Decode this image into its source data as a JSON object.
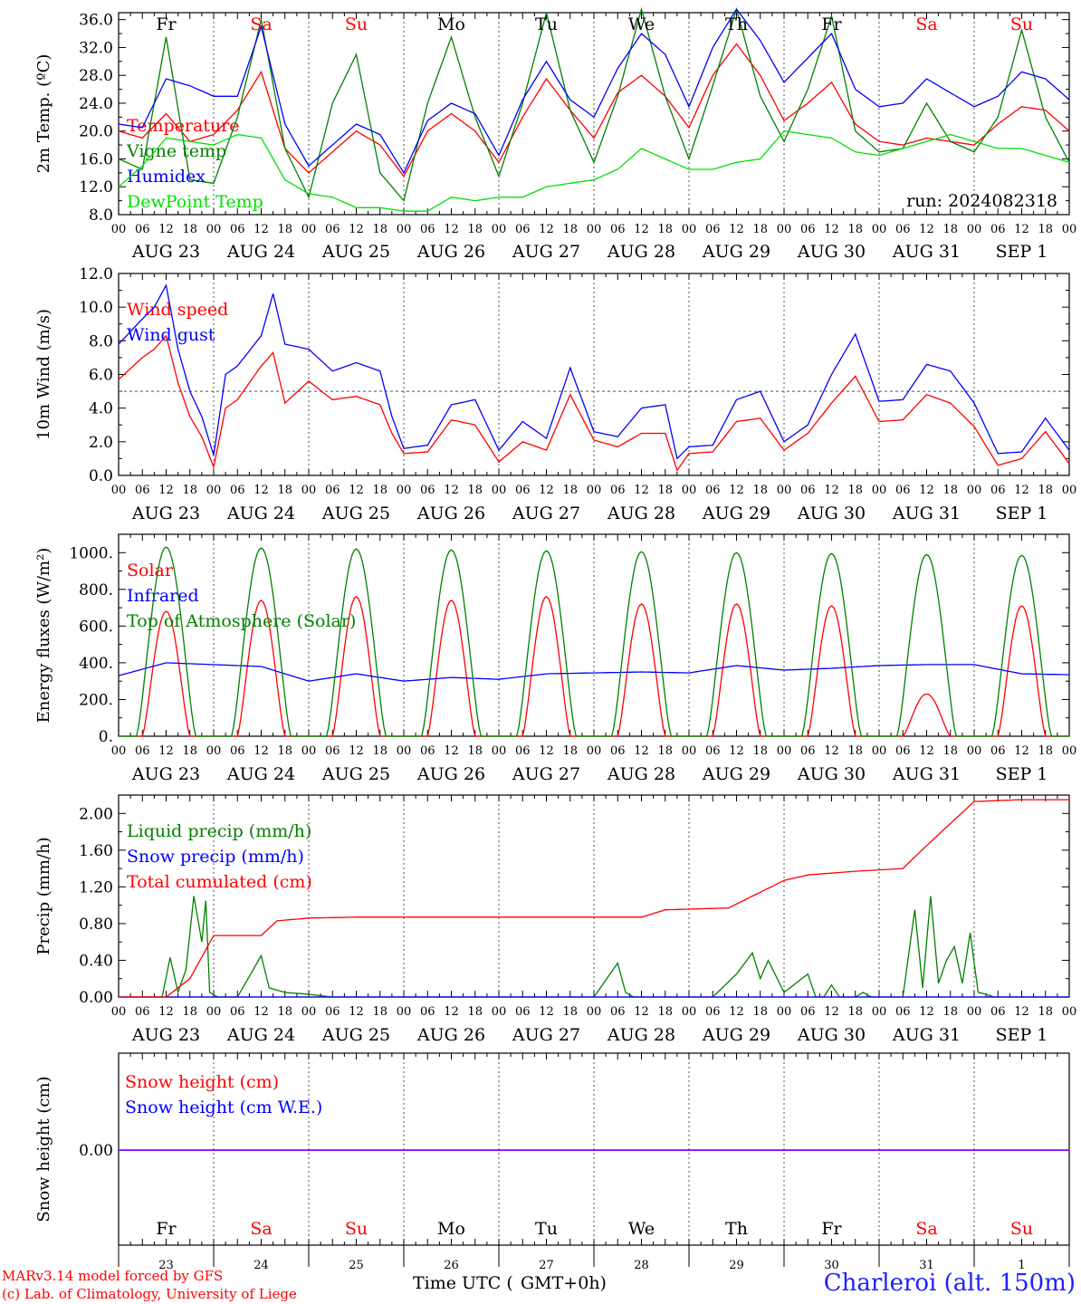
{
  "run_label": "run: 2024082318",
  "footer": {
    "credit_line1": "MARv3.14 model forced by GFS",
    "credit_line2": "(c) Lab. of Climatology, University of Liege",
    "time_axis_label": "Time UTC (",
    "time_axis_label2": "GMT+0h)",
    "station": "Charleroi (alt. 150m)"
  },
  "colors": {
    "red": "#ff0000",
    "blue": "#0000ff",
    "green": "#008000",
    "lightgreen": "#00e000",
    "purple": "#8000ff",
    "weekend": "#ff0000"
  },
  "chart_data": [
    {
      "type": "line",
      "ylabel": "2m Temp. (ºC)",
      "ylim": [
        8,
        37
      ],
      "yticks": [
        8,
        12,
        16,
        20,
        24,
        28,
        32,
        36
      ],
      "tick_decimals": 1,
      "grid": "vertical dotted at day boundaries",
      "weekdays": [
        {
          "label": "Fr",
          "weekend": false
        },
        {
          "label": "Sa",
          "weekend": true
        },
        {
          "label": "Su",
          "weekend": true
        },
        {
          "label": "Mo",
          "weekend": false
        },
        {
          "label": "Tu",
          "weekend": false
        },
        {
          "label": "We",
          "weekend": false
        },
        {
          "label": "Th",
          "weekend": false
        },
        {
          "label": "Fr",
          "weekend": false
        },
        {
          "label": "Sa",
          "weekend": true
        },
        {
          "label": "Su",
          "weekend": true
        }
      ],
      "x_hours": [
        0,
        6,
        12,
        15,
        18,
        24,
        30,
        36,
        40,
        42,
        48,
        54,
        60,
        66,
        72,
        78,
        84,
        90,
        96,
        102,
        108,
        114,
        120,
        126,
        132,
        138,
        144,
        150,
        156,
        162,
        168,
        174,
        180,
        186,
        192,
        198,
        204,
        210,
        216,
        222,
        228,
        234,
        240
      ],
      "series": [
        {
          "name": "Temperature",
          "color": "#ff0000",
          "x": [
            0,
            6,
            12,
            18,
            24,
            30,
            36,
            42,
            48,
            54,
            60,
            66,
            72,
            78,
            84,
            90,
            96,
            102,
            108,
            114,
            120,
            126,
            132,
            138,
            144,
            150,
            156,
            162,
            168,
            174,
            180,
            186,
            192,
            198,
            204,
            210,
            216,
            222,
            228,
            234,
            240
          ],
          "values": [
            20.0,
            19.0,
            22.5,
            18.5,
            19.5,
            23.0,
            28.5,
            17.5,
            14.0,
            17.0,
            20.0,
            18.0,
            13.5,
            20.0,
            22.5,
            20.0,
            15.5,
            22.0,
            27.5,
            23.0,
            19.0,
            25.5,
            28.0,
            25.0,
            20.5,
            28.0,
            32.5,
            28.0,
            21.5,
            24.0,
            27.0,
            21.0,
            18.5,
            18.0,
            19.0,
            18.5,
            18.0,
            21.0,
            23.5,
            23.0,
            20.0
          ]
        },
        {
          "name": "Vigne temp",
          "color": "#008000",
          "x": [
            0,
            6,
            12,
            18,
            24,
            30,
            36,
            42,
            48,
            54,
            60,
            66,
            72,
            78,
            84,
            90,
            96,
            102,
            108,
            114,
            120,
            126,
            132,
            138,
            144,
            150,
            156,
            162,
            168,
            174,
            180,
            186,
            192,
            198,
            204,
            210,
            216,
            222,
            228,
            234,
            240
          ],
          "values": [
            16.0,
            14.5,
            33.5,
            13.0,
            12.5,
            22.0,
            36.0,
            17.5,
            10.5,
            24.0,
            31.0,
            14.0,
            10.0,
            24.0,
            33.5,
            22.0,
            13.5,
            24.0,
            37.0,
            23.0,
            15.5,
            25.0,
            37.5,
            25.0,
            16.0,
            26.5,
            37.5,
            25.0,
            18.5,
            26.0,
            36.5,
            20.0,
            17.0,
            17.5,
            24.0,
            18.5,
            17.0,
            22.0,
            34.5,
            22.0,
            15.5
          ]
        },
        {
          "name": "Humidex",
          "color": "#0000ff",
          "x": [
            0,
            6,
            12,
            18,
            24,
            30,
            36,
            42,
            48,
            54,
            60,
            66,
            72,
            78,
            84,
            90,
            96,
            102,
            108,
            114,
            120,
            126,
            132,
            138,
            144,
            150,
            156,
            162,
            168,
            174,
            180,
            186,
            192,
            198,
            204,
            210,
            216,
            222,
            228,
            234,
            240
          ],
          "values": [
            21.0,
            20.5,
            27.5,
            26.5,
            25.0,
            25.0,
            35.0,
            21.0,
            15.0,
            18.0,
            21.0,
            19.5,
            14.0,
            21.5,
            24.0,
            22.5,
            16.5,
            24.5,
            30.0,
            24.5,
            22.0,
            29.0,
            34.0,
            31.0,
            23.5,
            32.0,
            37.5,
            33.0,
            27.0,
            30.5,
            34.0,
            26.0,
            23.5,
            24.0,
            27.5,
            25.5,
            23.5,
            25.0,
            28.5,
            27.5,
            24.5
          ]
        },
        {
          "name": "DewPoint Temp",
          "color": "#00e000",
          "x": [
            0,
            6,
            12,
            18,
            24,
            30,
            36,
            42,
            48,
            54,
            60,
            66,
            72,
            78,
            84,
            90,
            96,
            102,
            108,
            114,
            120,
            126,
            132,
            138,
            144,
            150,
            156,
            162,
            168,
            174,
            180,
            186,
            192,
            198,
            204,
            210,
            216,
            222,
            228,
            234,
            240
          ],
          "values": [
            12.0,
            15.0,
            19.0,
            18.5,
            18.0,
            19.5,
            19.0,
            13.0,
            11.0,
            10.5,
            9.0,
            9.0,
            8.5,
            8.5,
            10.5,
            10.0,
            10.5,
            10.5,
            12.0,
            12.5,
            13.0,
            14.5,
            17.5,
            16.0,
            14.5,
            14.5,
            15.5,
            16.0,
            20.0,
            19.5,
            19.0,
            17.0,
            16.5,
            17.5,
            18.5,
            19.5,
            18.5,
            17.5,
            17.5,
            16.5,
            15.5
          ]
        }
      ]
    },
    {
      "type": "line",
      "ylabel": "10m Wind (m/s)",
      "ylim": [
        0,
        12
      ],
      "yticks": [
        0,
        2,
        4,
        6,
        8,
        10,
        12
      ],
      "tick_decimals": 1,
      "reference_line": 5,
      "x_hours": [
        0,
        6,
        9,
        12,
        15,
        18,
        21,
        24,
        27,
        30,
        36,
        39,
        42,
        48,
        54,
        60,
        66,
        69,
        72,
        78,
        84,
        90,
        96,
        102,
        108,
        114,
        120,
        126,
        132,
        138,
        141,
        144,
        150,
        156,
        162,
        168,
        174,
        180,
        186,
        192,
        198,
        204,
        210,
        216,
        222,
        228,
        234,
        240
      ],
      "series": [
        {
          "name": "Wind speed",
          "color": "#ff0000",
          "x": [
            0,
            6,
            9,
            12,
            15,
            18,
            21,
            24,
            27,
            30,
            36,
            39,
            42,
            48,
            54,
            60,
            66,
            69,
            72,
            78,
            84,
            90,
            96,
            102,
            108,
            114,
            120,
            126,
            132,
            138,
            141,
            144,
            150,
            156,
            162,
            168,
            174,
            180,
            186,
            192,
            198,
            204,
            210,
            216,
            222,
            228,
            234,
            240
          ],
          "values": [
            5.7,
            7.0,
            7.5,
            8.3,
            5.5,
            3.5,
            2.3,
            0.5,
            4.0,
            4.5,
            6.5,
            7.3,
            4.3,
            5.6,
            4.5,
            4.7,
            4.2,
            2.5,
            1.3,
            1.4,
            3.3,
            3.0,
            0.8,
            2.0,
            1.5,
            4.8,
            2.1,
            1.7,
            2.5,
            2.5,
            0.3,
            1.3,
            1.4,
            3.2,
            3.4,
            1.5,
            2.5,
            4.3,
            5.9,
            3.2,
            3.3,
            4.8,
            4.3,
            2.9,
            0.6,
            1.0,
            2.6,
            0.7
          ]
        },
        {
          "name": "Wind gust",
          "color": "#0000ff",
          "x": [
            0,
            6,
            9,
            12,
            15,
            18,
            21,
            24,
            27,
            30,
            36,
            39,
            42,
            48,
            54,
            60,
            66,
            69,
            72,
            78,
            84,
            90,
            96,
            102,
            108,
            114,
            120,
            126,
            132,
            138,
            141,
            144,
            150,
            156,
            162,
            168,
            174,
            180,
            186,
            192,
            198,
            204,
            210,
            216,
            222,
            228,
            234,
            240
          ],
          "values": [
            7.8,
            9.3,
            10.0,
            11.3,
            7.5,
            5.0,
            3.5,
            1.2,
            6.0,
            6.5,
            8.3,
            10.8,
            7.8,
            7.5,
            6.2,
            6.7,
            6.2,
            3.5,
            1.6,
            1.8,
            4.2,
            4.5,
            1.5,
            3.2,
            2.2,
            6.4,
            2.6,
            2.3,
            4.0,
            4.2,
            1.0,
            1.7,
            1.8,
            4.5,
            5.0,
            2.0,
            3.0,
            6.0,
            8.4,
            4.4,
            4.5,
            6.6,
            6.2,
            4.3,
            1.3,
            1.4,
            3.4,
            1.5
          ]
        }
      ]
    },
    {
      "type": "line",
      "ylabel": "Energy fluxes (W/m²)",
      "ylim": [
        0,
        1100
      ],
      "yticks": [
        0,
        200,
        400,
        600,
        800,
        1000
      ],
      "tick_decimals": 0,
      "series": [
        {
          "name": "Solar",
          "color": "#ff0000",
          "daily_peaks": [
            680,
            740,
            760,
            740,
            760,
            720,
            720,
            710,
            230,
            710
          ],
          "peak_hour": 12,
          "half_width_hours": 6
        },
        {
          "name": "Infrared",
          "color": "#0000ff",
          "x": [
            0,
            12,
            24,
            36,
            48,
            60,
            72,
            84,
            96,
            108,
            120,
            132,
            144,
            156,
            168,
            180,
            192,
            204,
            216,
            228,
            240
          ],
          "values": [
            330,
            400,
            390,
            380,
            300,
            340,
            300,
            320,
            310,
            340,
            345,
            350,
            345,
            385,
            360,
            370,
            385,
            390,
            390,
            340,
            335
          ]
        },
        {
          "name": "Top of Atmosphere (Solar)",
          "color": "#008000",
          "daily_peaks": [
            1030,
            1025,
            1020,
            1015,
            1010,
            1005,
            1000,
            995,
            990,
            985
          ],
          "peak_hour": 12,
          "half_width_hours": 7.5
        }
      ]
    },
    {
      "type": "line",
      "ylabel": "Precip (mm/h)",
      "ylim": [
        0,
        2.2
      ],
      "yticks": [
        0,
        0.4,
        0.8,
        1.2,
        1.6,
        2.0
      ],
      "tick_decimals": 2,
      "series": [
        {
          "name": "Liquid precip (mm/h)",
          "color": "#008000",
          "x": [
            0,
            11,
            13,
            15,
            17,
            19,
            21,
            22,
            23,
            25,
            30,
            36,
            38,
            42,
            48,
            54,
            60,
            120,
            126,
            128,
            130,
            150,
            156,
            160,
            162,
            164,
            168,
            174,
            176,
            178,
            180,
            182,
            186,
            188,
            190,
            198,
            201,
            203,
            205,
            207,
            209,
            211,
            213,
            215,
            217,
            219,
            221,
            222,
            224,
            240
          ],
          "values": [
            0,
            0,
            0.43,
            0.05,
            0.3,
            1.1,
            0.6,
            1.05,
            0.05,
            0,
            0,
            0.45,
            0.1,
            0.05,
            0.03,
            0,
            0,
            0,
            0.37,
            0.05,
            0,
            0,
            0.25,
            0.48,
            0.2,
            0.4,
            0.05,
            0.25,
            0,
            0,
            0.13,
            0,
            0,
            0.05,
            0,
            0,
            0.95,
            0.1,
            1.1,
            0.15,
            0.4,
            0.55,
            0.15,
            0.7,
            0.05,
            0.03,
            0,
            0,
            0,
            0
          ]
        },
        {
          "name": "Snow precip (mm/h)",
          "color": "#0000ff",
          "x": [
            0,
            240
          ],
          "values": [
            0,
            0
          ]
        },
        {
          "name": "Total cumulated (cm)",
          "color": "#ff0000",
          "x": [
            0,
            12,
            18,
            24,
            36,
            40,
            48,
            60,
            132,
            138,
            154,
            168,
            174,
            186,
            198,
            204,
            216,
            228,
            240
          ],
          "values": [
            0,
            0,
            0.2,
            0.67,
            0.67,
            0.83,
            0.86,
            0.87,
            0.87,
            0.95,
            0.97,
            1.27,
            1.33,
            1.37,
            1.4,
            1.65,
            2.13,
            2.15,
            2.15
          ]
        }
      ]
    },
    {
      "type": "line",
      "ylabel": "Snow height (cm)",
      "yticks": [
        0
      ],
      "tick_decimals": 2,
      "series": [
        {
          "name": "Snow height (cm)",
          "color": "#ff0000",
          "x": [
            0,
            240
          ],
          "values": [
            0,
            0
          ]
        },
        {
          "name": "Snow height (cm W.E.)",
          "color": "#0000ff",
          "x": [
            0,
            240
          ],
          "values": [
            0,
            0
          ]
        }
      ],
      "weekdays": [
        {
          "label": "Fr",
          "weekend": false
        },
        {
          "label": "Sa",
          "weekend": true
        },
        {
          "label": "Su",
          "weekend": true
        },
        {
          "label": "Mo",
          "weekend": false
        },
        {
          "label": "Tu",
          "weekend": false
        },
        {
          "label": "We",
          "weekend": false
        },
        {
          "label": "Th",
          "weekend": false
        },
        {
          "label": "Fr",
          "weekend": false
        },
        {
          "label": "Sa",
          "weekend": true
        },
        {
          "label": "Su",
          "weekend": true
        }
      ],
      "day_numbers": [
        "23",
        "24",
        "25",
        "26",
        "27",
        "28",
        "29",
        "30",
        "31",
        "1"
      ]
    }
  ],
  "x_axis": {
    "hour_ticks": [
      "00",
      "06",
      "12",
      "18"
    ],
    "dates": [
      "AUG 23",
      "AUG 24",
      "AUG 25",
      "AUG 26",
      "AUG 27",
      "AUG 28",
      "AUG 29",
      "AUG 30",
      "AUG 31",
      "SEP  1"
    ],
    "end_tick": "00"
  }
}
